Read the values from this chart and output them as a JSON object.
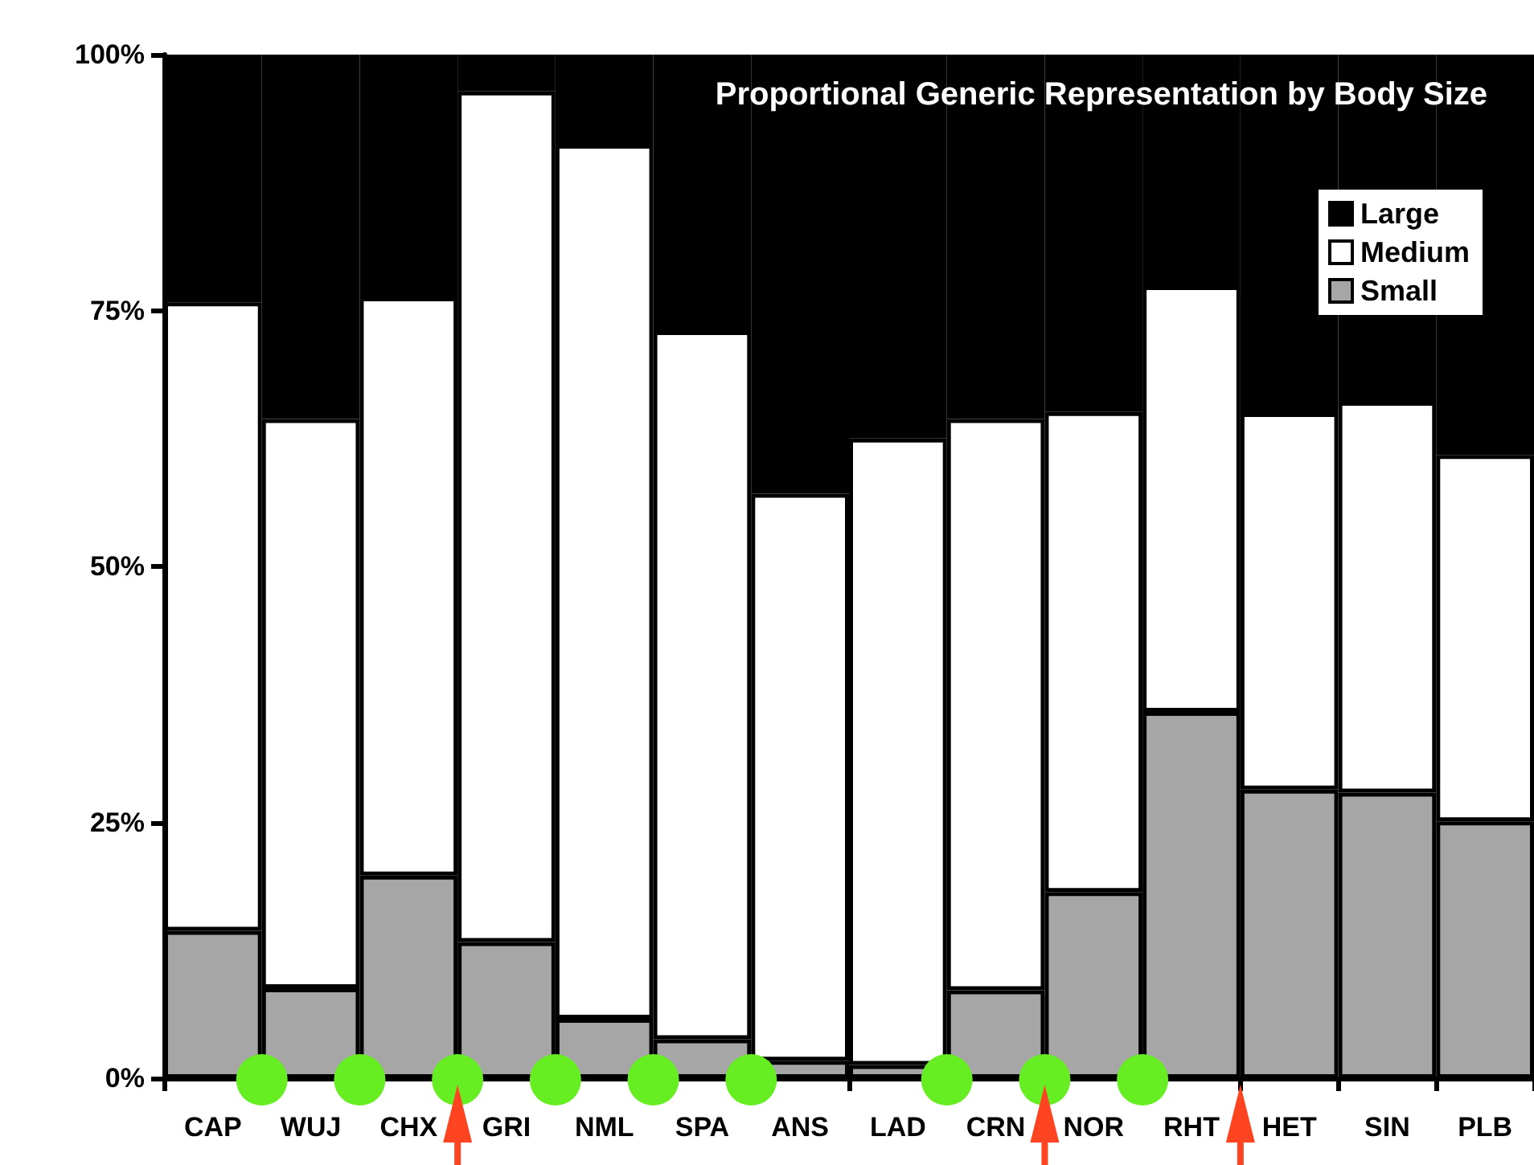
{
  "chart_data": {
    "type": "bar",
    "title": "Proportional Generic Representation by Body Size",
    "categories": [
      "CAP",
      "WUJ",
      "CHX",
      "GRI",
      "NML",
      "SPA",
      "ANS",
      "LAD",
      "CRN",
      "NOR",
      "RHT",
      "HET",
      "SIN",
      "PLB"
    ],
    "stacked": true,
    "series": [
      {
        "name": "Small",
        "color": "#a6a6a6",
        "values": [
          14.4,
          8.8,
          19.8,
          13.3,
          5.8,
          3.8,
          1.7,
          1.3,
          8.6,
          18.2,
          35.8,
          28.2,
          27.9,
          25.1
        ]
      },
      {
        "name": "Medium",
        "color": "#ffffff",
        "values": [
          61.4,
          55.6,
          56.5,
          83.1,
          85.4,
          69.2,
          55.4,
          61.2,
          55.8,
          46.9,
          41.6,
          36.8,
          38.2,
          35.8
        ]
      },
      {
        "name": "Large",
        "color": "#000000",
        "values": [
          24.2,
          35.6,
          23.7,
          3.6,
          8.8,
          27.0,
          42.9,
          37.5,
          35.6,
          34.9,
          22.6,
          35.0,
          33.9,
          39.1
        ]
      }
    ],
    "ylim": [
      0,
      100
    ],
    "yticks": [
      {
        "value": 0,
        "label": "0%"
      },
      {
        "value": 25,
        "label": "25%"
      },
      {
        "value": 50,
        "label": "50%"
      },
      {
        "value": 75,
        "label": "75%"
      },
      {
        "value": 100,
        "label": "100%"
      }
    ],
    "grid": false,
    "legend": "top right"
  }
}
